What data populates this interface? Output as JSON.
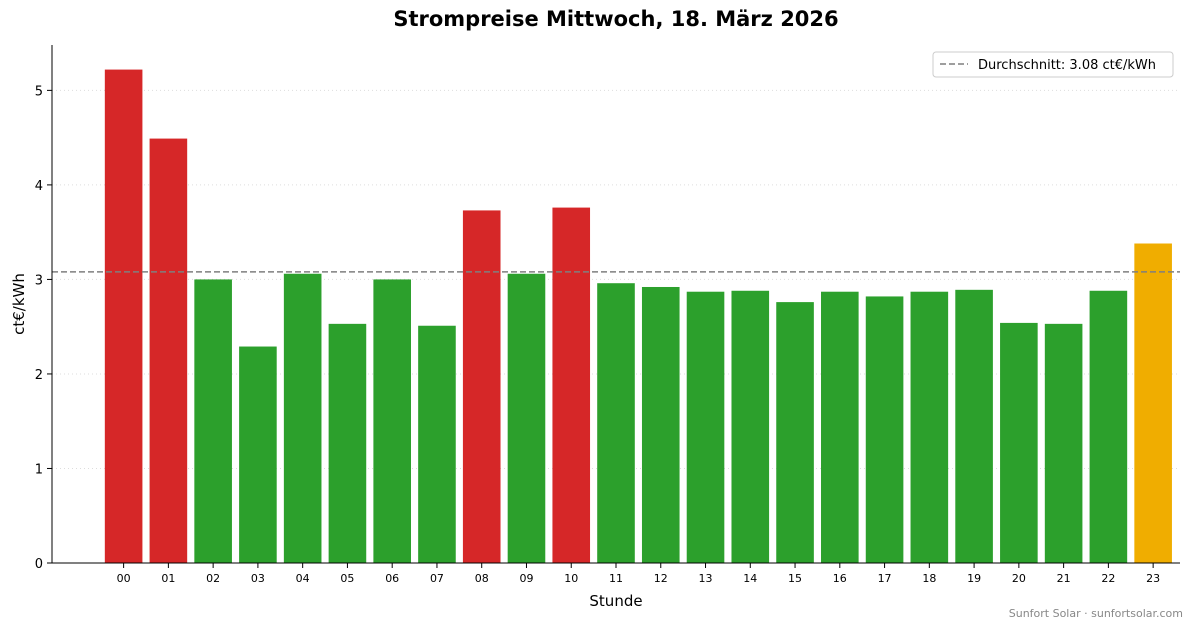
{
  "chart_data": {
    "type": "bar",
    "title": "Strompreise Mittwoch, 18. März 2026",
    "xlabel": "Stunde",
    "ylabel": "ct€/kWh",
    "categories": [
      "00",
      "01",
      "02",
      "03",
      "04",
      "05",
      "06",
      "07",
      "08",
      "09",
      "10",
      "11",
      "12",
      "13",
      "14",
      "15",
      "16",
      "17",
      "18",
      "19",
      "20",
      "21",
      "22",
      "23"
    ],
    "values": [
      5.22,
      4.49,
      3.0,
      2.29,
      3.06,
      2.53,
      3.0,
      2.51,
      3.73,
      3.06,
      3.76,
      2.96,
      2.92,
      2.87,
      2.88,
      2.76,
      2.87,
      2.82,
      2.87,
      2.89,
      2.54,
      2.53,
      2.88,
      3.38
    ],
    "bar_colors": [
      "#d62728",
      "#d62728",
      "#2ca02c",
      "#2ca02c",
      "#2ca02c",
      "#2ca02c",
      "#2ca02c",
      "#2ca02c",
      "#d62728",
      "#2ca02c",
      "#d62728",
      "#2ca02c",
      "#2ca02c",
      "#2ca02c",
      "#2ca02c",
      "#2ca02c",
      "#2ca02c",
      "#2ca02c",
      "#2ca02c",
      "#2ca02c",
      "#2ca02c",
      "#2ca02c",
      "#2ca02c",
      "#f0ad00"
    ],
    "average": 3.08,
    "average_color": "#7f7f7f",
    "legend": {
      "label": "Durchschnitt: 3.08 ct€/kWh",
      "position": "top-right"
    },
    "ylim": [
      0,
      5.48
    ],
    "yticks": [
      0,
      1,
      2,
      3,
      4,
      5
    ],
    "grid": "y-dotted"
  },
  "watermark": "Sunfort Solar · sunfortsolar.com"
}
